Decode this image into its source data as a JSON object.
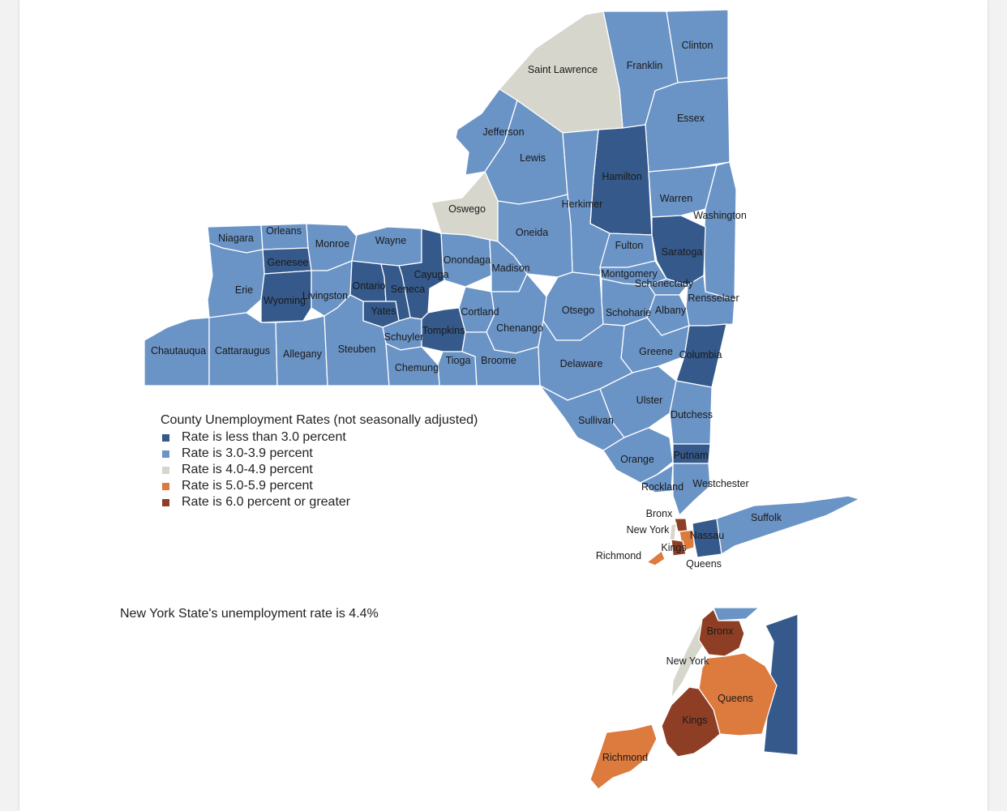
{
  "legend": {
    "title": "County Unemployment Rates (not seasonally adjusted)",
    "items": [
      {
        "label": "Rate is less than 3.0 percent",
        "color": "#34598a"
      },
      {
        "label": "Rate is 3.0-3.9 percent",
        "color": "#6a93c6"
      },
      {
        "label": "Rate is 4.0-4.9 percent",
        "color": "#d7d6cc"
      },
      {
        "label": "Rate is 5.0-5.9 percent",
        "color": "#dd7a3d"
      },
      {
        "label": "Rate is 6.0 percent or greater",
        "color": "#8e3e24"
      }
    ]
  },
  "statewide_note": "New York State's unemployment rate is 4.4%",
  "counties": {
    "clinton": "Clinton",
    "franklin": "Franklin",
    "saint_lawrence": "Saint Lawrence",
    "essex": "Essex",
    "jefferson": "Jefferson",
    "lewis": "Lewis",
    "hamilton": "Hamilton",
    "warren": "Warren",
    "herkimer": "Herkimer",
    "washington": "Washington",
    "oswego": "Oswego",
    "oneida": "Oneida",
    "fulton": "Fulton",
    "saratoga": "Saratoga",
    "niagara": "Niagara",
    "orleans": "Orleans",
    "monroe": "Monroe",
    "wayne": "Wayne",
    "genesee": "Genesee",
    "onondaga": "Onondaga",
    "madison": "Madison",
    "cayuga": "Cayuga",
    "montgomery": "Montgomery",
    "schenectady": "Schenectady",
    "erie": "Erie",
    "wyoming": "Wyoming",
    "livingston": "Livingston",
    "ontario": "Ontario",
    "seneca": "Seneca",
    "rensselaer": "Rensselaer",
    "yates": "Yates",
    "cortland": "Cortland",
    "otsego": "Otsego",
    "schoharie": "Schoharie",
    "albany": "Albany",
    "schuyler": "Schuyler",
    "tompkins": "Tompkins",
    "chenango": "Chenango",
    "chautauqua": "Chautauqua",
    "cattaraugus": "Cattaraugus",
    "allegany": "Allegany",
    "steuben": "Steuben",
    "tioga": "Tioga",
    "broome": "Broome",
    "greene": "Greene",
    "columbia": "Columbia",
    "chemung": "Chemung",
    "delaware": "Delaware",
    "ulster": "Ulster",
    "sullivan": "Sullivan",
    "dutchess": "Dutchess",
    "orange": "Orange",
    "putnam": "Putnam",
    "rockland": "Rockland",
    "westchester": "Westchester",
    "bronx": "Bronx",
    "suffolk": "Suffolk",
    "new_york": "New York",
    "nassau": "Nassau",
    "kings": "Kings",
    "richmond": "Richmond",
    "queens": "Queens"
  },
  "inset": {
    "bronx": "Bronx",
    "new_york": "New York",
    "queens": "Queens",
    "kings": "Kings",
    "richmond": "Richmond"
  }
}
